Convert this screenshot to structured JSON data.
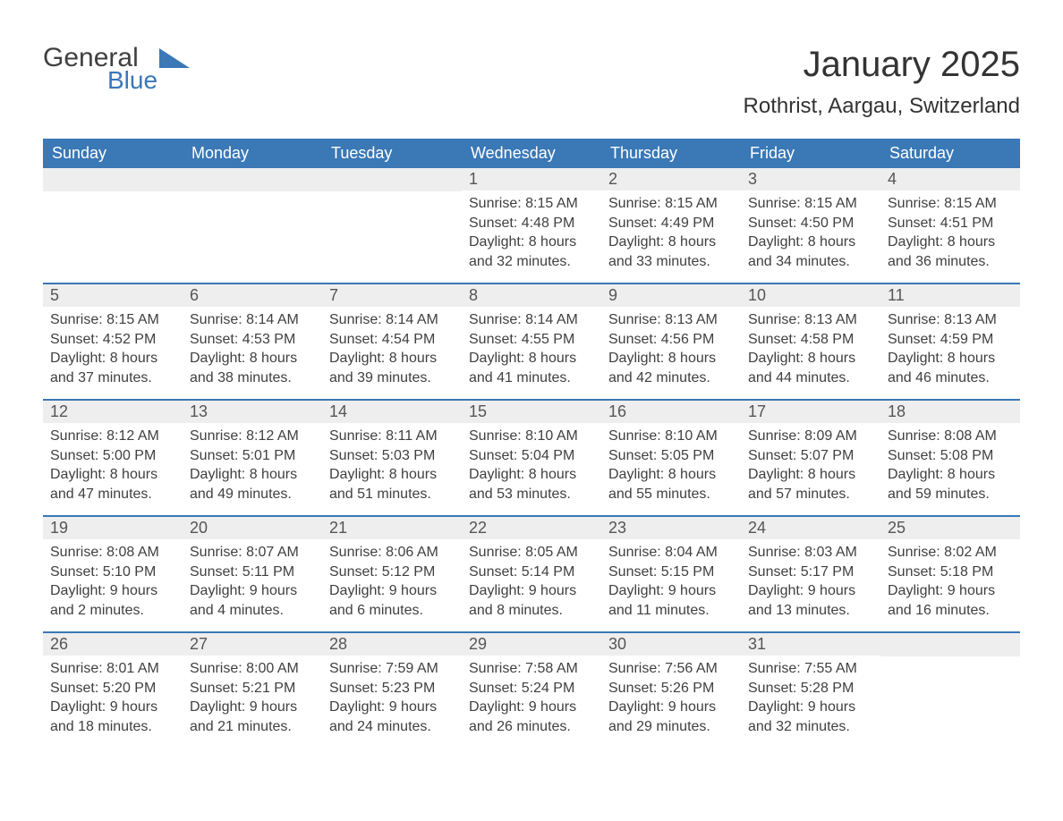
{
  "brand": {
    "word1": "General",
    "word2": "Blue",
    "word1_color": "#404040",
    "word2_color": "#3a78b6",
    "triangle_color": "#3a78b6"
  },
  "header": {
    "month_title": "January 2025",
    "location": "Rothrist, Aargau, Switzerland"
  },
  "colors": {
    "header_bg": "#3a78b6",
    "header_text": "#ffffff",
    "daynum_bg": "#eeeeee",
    "body_text": "#404040",
    "page_bg": "#ffffff",
    "week_divider": "#3a78b6"
  },
  "typography": {
    "title_fontsize": 40,
    "location_fontsize": 24,
    "dayhead_fontsize": 18,
    "daynum_fontsize": 18,
    "body_fontsize": 16
  },
  "calendar": {
    "day_names": [
      "Sunday",
      "Monday",
      "Tuesday",
      "Wednesday",
      "Thursday",
      "Friday",
      "Saturday"
    ],
    "weeks": [
      [
        null,
        null,
        null,
        {
          "n": "1",
          "sunrise": "Sunrise: 8:15 AM",
          "sunset": "Sunset: 4:48 PM",
          "dl1": "Daylight: 8 hours",
          "dl2": "and 32 minutes."
        },
        {
          "n": "2",
          "sunrise": "Sunrise: 8:15 AM",
          "sunset": "Sunset: 4:49 PM",
          "dl1": "Daylight: 8 hours",
          "dl2": "and 33 minutes."
        },
        {
          "n": "3",
          "sunrise": "Sunrise: 8:15 AM",
          "sunset": "Sunset: 4:50 PM",
          "dl1": "Daylight: 8 hours",
          "dl2": "and 34 minutes."
        },
        {
          "n": "4",
          "sunrise": "Sunrise: 8:15 AM",
          "sunset": "Sunset: 4:51 PM",
          "dl1": "Daylight: 8 hours",
          "dl2": "and 36 minutes."
        }
      ],
      [
        {
          "n": "5",
          "sunrise": "Sunrise: 8:15 AM",
          "sunset": "Sunset: 4:52 PM",
          "dl1": "Daylight: 8 hours",
          "dl2": "and 37 minutes."
        },
        {
          "n": "6",
          "sunrise": "Sunrise: 8:14 AM",
          "sunset": "Sunset: 4:53 PM",
          "dl1": "Daylight: 8 hours",
          "dl2": "and 38 minutes."
        },
        {
          "n": "7",
          "sunrise": "Sunrise: 8:14 AM",
          "sunset": "Sunset: 4:54 PM",
          "dl1": "Daylight: 8 hours",
          "dl2": "and 39 minutes."
        },
        {
          "n": "8",
          "sunrise": "Sunrise: 8:14 AM",
          "sunset": "Sunset: 4:55 PM",
          "dl1": "Daylight: 8 hours",
          "dl2": "and 41 minutes."
        },
        {
          "n": "9",
          "sunrise": "Sunrise: 8:13 AM",
          "sunset": "Sunset: 4:56 PM",
          "dl1": "Daylight: 8 hours",
          "dl2": "and 42 minutes."
        },
        {
          "n": "10",
          "sunrise": "Sunrise: 8:13 AM",
          "sunset": "Sunset: 4:58 PM",
          "dl1": "Daylight: 8 hours",
          "dl2": "and 44 minutes."
        },
        {
          "n": "11",
          "sunrise": "Sunrise: 8:13 AM",
          "sunset": "Sunset: 4:59 PM",
          "dl1": "Daylight: 8 hours",
          "dl2": "and 46 minutes."
        }
      ],
      [
        {
          "n": "12",
          "sunrise": "Sunrise: 8:12 AM",
          "sunset": "Sunset: 5:00 PM",
          "dl1": "Daylight: 8 hours",
          "dl2": "and 47 minutes."
        },
        {
          "n": "13",
          "sunrise": "Sunrise: 8:12 AM",
          "sunset": "Sunset: 5:01 PM",
          "dl1": "Daylight: 8 hours",
          "dl2": "and 49 minutes."
        },
        {
          "n": "14",
          "sunrise": "Sunrise: 8:11 AM",
          "sunset": "Sunset: 5:03 PM",
          "dl1": "Daylight: 8 hours",
          "dl2": "and 51 minutes."
        },
        {
          "n": "15",
          "sunrise": "Sunrise: 8:10 AM",
          "sunset": "Sunset: 5:04 PM",
          "dl1": "Daylight: 8 hours",
          "dl2": "and 53 minutes."
        },
        {
          "n": "16",
          "sunrise": "Sunrise: 8:10 AM",
          "sunset": "Sunset: 5:05 PM",
          "dl1": "Daylight: 8 hours",
          "dl2": "and 55 minutes."
        },
        {
          "n": "17",
          "sunrise": "Sunrise: 8:09 AM",
          "sunset": "Sunset: 5:07 PM",
          "dl1": "Daylight: 8 hours",
          "dl2": "and 57 minutes."
        },
        {
          "n": "18",
          "sunrise": "Sunrise: 8:08 AM",
          "sunset": "Sunset: 5:08 PM",
          "dl1": "Daylight: 8 hours",
          "dl2": "and 59 minutes."
        }
      ],
      [
        {
          "n": "19",
          "sunrise": "Sunrise: 8:08 AM",
          "sunset": "Sunset: 5:10 PM",
          "dl1": "Daylight: 9 hours",
          "dl2": "and 2 minutes."
        },
        {
          "n": "20",
          "sunrise": "Sunrise: 8:07 AM",
          "sunset": "Sunset: 5:11 PM",
          "dl1": "Daylight: 9 hours",
          "dl2": "and 4 minutes."
        },
        {
          "n": "21",
          "sunrise": "Sunrise: 8:06 AM",
          "sunset": "Sunset: 5:12 PM",
          "dl1": "Daylight: 9 hours",
          "dl2": "and 6 minutes."
        },
        {
          "n": "22",
          "sunrise": "Sunrise: 8:05 AM",
          "sunset": "Sunset: 5:14 PM",
          "dl1": "Daylight: 9 hours",
          "dl2": "and 8 minutes."
        },
        {
          "n": "23",
          "sunrise": "Sunrise: 8:04 AM",
          "sunset": "Sunset: 5:15 PM",
          "dl1": "Daylight: 9 hours",
          "dl2": "and 11 minutes."
        },
        {
          "n": "24",
          "sunrise": "Sunrise: 8:03 AM",
          "sunset": "Sunset: 5:17 PM",
          "dl1": "Daylight: 9 hours",
          "dl2": "and 13 minutes."
        },
        {
          "n": "25",
          "sunrise": "Sunrise: 8:02 AM",
          "sunset": "Sunset: 5:18 PM",
          "dl1": "Daylight: 9 hours",
          "dl2": "and 16 minutes."
        }
      ],
      [
        {
          "n": "26",
          "sunrise": "Sunrise: 8:01 AM",
          "sunset": "Sunset: 5:20 PM",
          "dl1": "Daylight: 9 hours",
          "dl2": "and 18 minutes."
        },
        {
          "n": "27",
          "sunrise": "Sunrise: 8:00 AM",
          "sunset": "Sunset: 5:21 PM",
          "dl1": "Daylight: 9 hours",
          "dl2": "and 21 minutes."
        },
        {
          "n": "28",
          "sunrise": "Sunrise: 7:59 AM",
          "sunset": "Sunset: 5:23 PM",
          "dl1": "Daylight: 9 hours",
          "dl2": "and 24 minutes."
        },
        {
          "n": "29",
          "sunrise": "Sunrise: 7:58 AM",
          "sunset": "Sunset: 5:24 PM",
          "dl1": "Daylight: 9 hours",
          "dl2": "and 26 minutes."
        },
        {
          "n": "30",
          "sunrise": "Sunrise: 7:56 AM",
          "sunset": "Sunset: 5:26 PM",
          "dl1": "Daylight: 9 hours",
          "dl2": "and 29 minutes."
        },
        {
          "n": "31",
          "sunrise": "Sunrise: 7:55 AM",
          "sunset": "Sunset: 5:28 PM",
          "dl1": "Daylight: 9 hours",
          "dl2": "and 32 minutes."
        },
        null
      ]
    ]
  }
}
